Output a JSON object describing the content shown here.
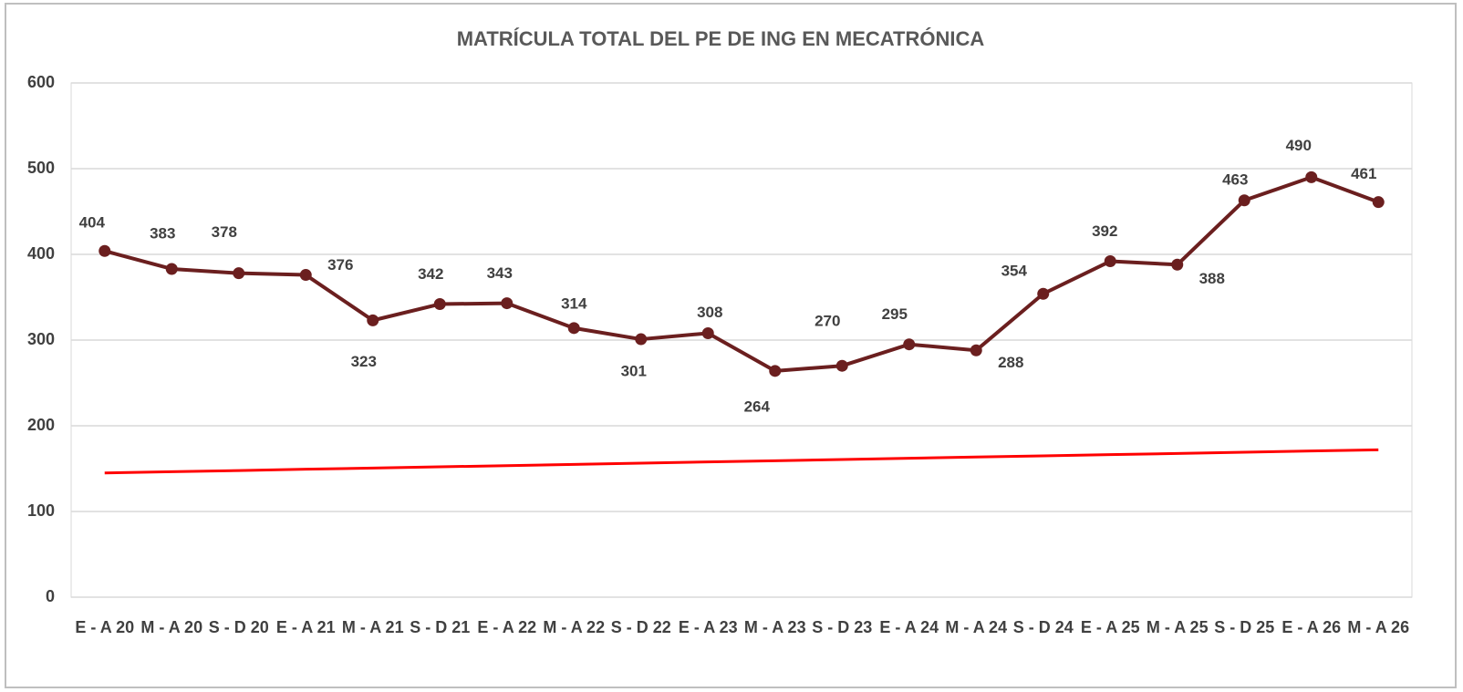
{
  "chart_data": {
    "type": "line",
    "title": "MATRÍCULA TOTAL DEL PE DE ING EN MECATRÓNICA",
    "categories": [
      "E - A 20",
      "M - A 20",
      "S - D 20",
      "E - A 21",
      "M - A 21",
      "S - D 21",
      "E - A 22",
      "M - A 22",
      "S - D 22",
      "E - A 23",
      "M - A 23",
      "S - D 23",
      "E - A 24",
      "M - A 24",
      "S - D 24",
      "E - A 25",
      "M - A 25",
      "S - D 25",
      "E - A 26",
      "M - A 26"
    ],
    "series": [
      {
        "color": "#6b1f1f",
        "values": [
          404,
          383,
          378,
          376,
          323,
          342,
          343,
          314,
          301,
          308,
          264,
          270,
          295,
          288,
          354,
          392,
          388,
          463,
          490,
          461
        ],
        "data_labels": true
      },
      {
        "color": "#ff0000",
        "values": [
          145,
          146.4,
          147.8,
          149.3,
          150.7,
          152.1,
          153.5,
          154.9,
          156.4,
          157.8,
          159.2,
          160.6,
          162.1,
          163.5,
          164.9,
          166.3,
          167.7,
          169.2,
          170.6,
          172
        ],
        "markers": false
      }
    ],
    "ylim": [
      0,
      600
    ],
    "yticks": [
      0,
      100,
      200,
      300,
      400,
      500,
      600
    ],
    "grid": true
  }
}
